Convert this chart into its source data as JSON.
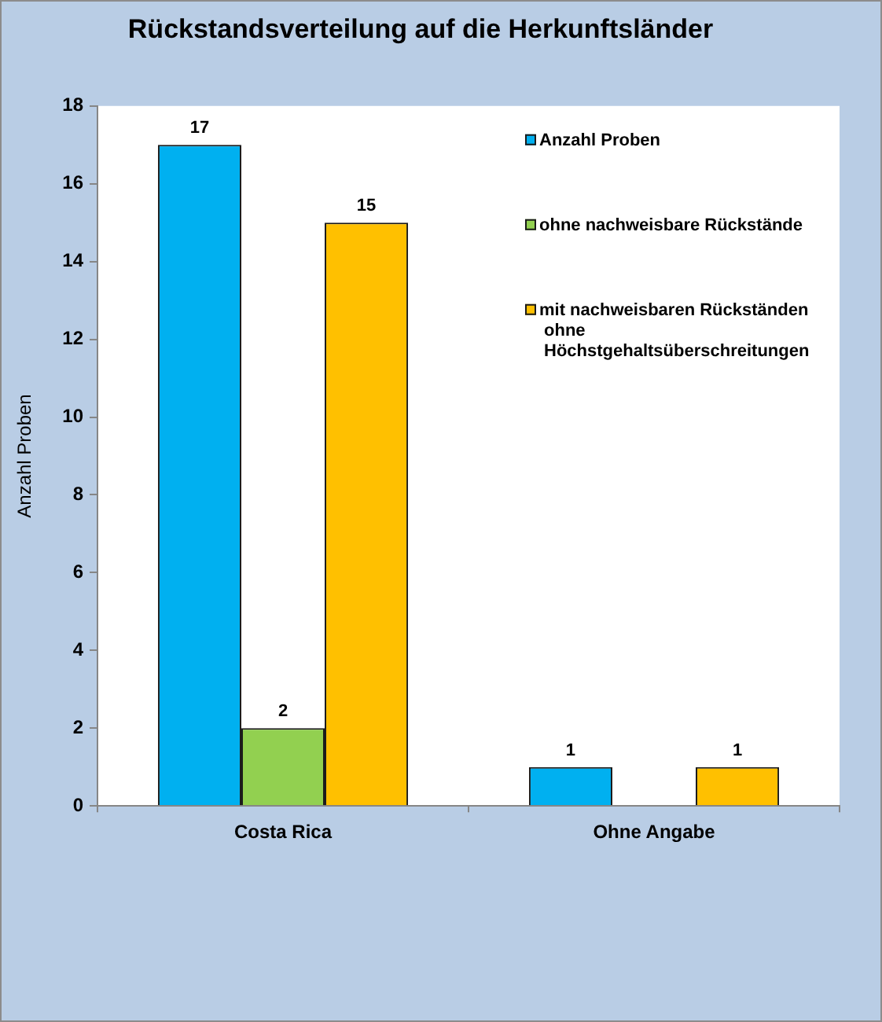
{
  "chart_data": {
    "type": "bar",
    "title": "Rückstandsverteilung auf die Herkunftsländer",
    "ylabel": "Anzahl Proben",
    "categories": [
      "Costa Rica",
      "Ohne Angabe"
    ],
    "series": [
      {
        "name": "Anzahl Proben",
        "color": "#00b0f0",
        "values": [
          17,
          1
        ]
      },
      {
        "name": "ohne nachweisbare Rückstände",
        "color": "#92d050",
        "values": [
          2,
          null
        ]
      },
      {
        "name": "mit nachweisbaren Rückständen ohne Höchstgehaltsüberschreitungen",
        "color": "#ffc000",
        "values": [
          15,
          1
        ]
      }
    ],
    "ylim": [
      0,
      18
    ],
    "yticks": [
      0,
      2,
      4,
      6,
      8,
      10,
      12,
      14,
      16,
      18
    ],
    "grid": false,
    "legend": "top right",
    "data_labels": true
  }
}
